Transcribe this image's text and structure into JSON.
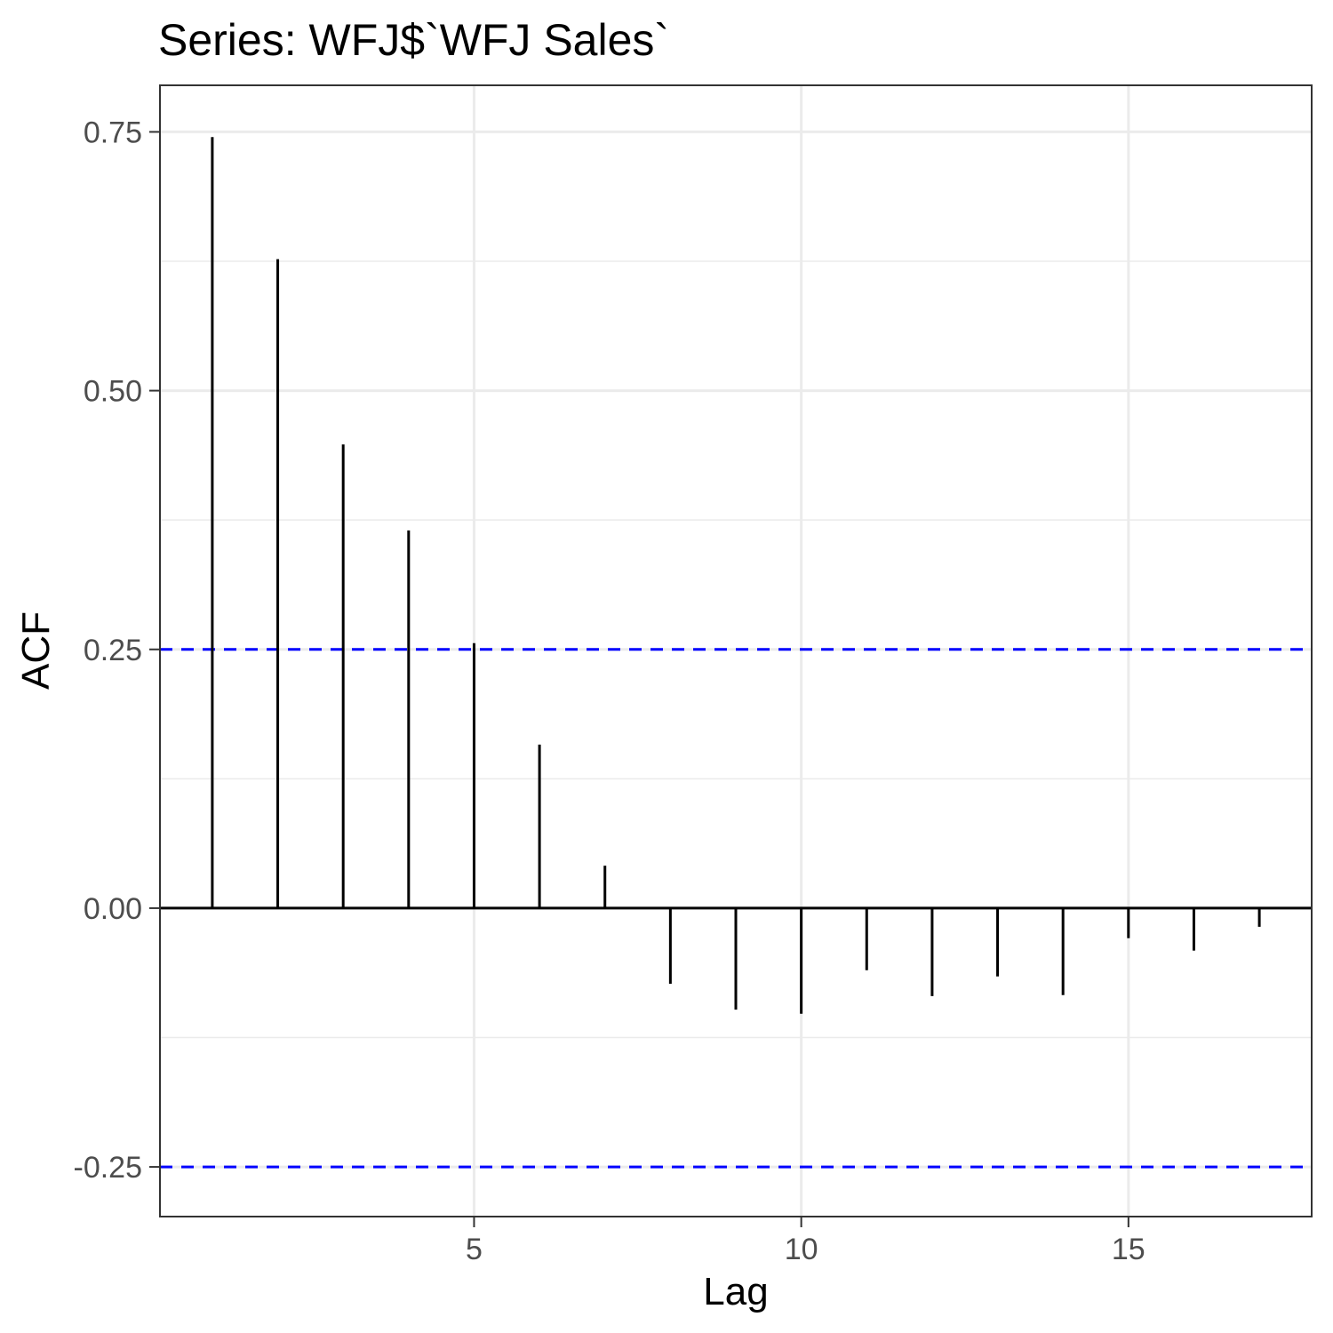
{
  "chart_data": {
    "type": "bar",
    "title": "Series: WFJ$`WFJ Sales`",
    "xlabel": "Lag",
    "ylabel": "ACF",
    "x": [
      1,
      2,
      3,
      4,
      5,
      6,
      7,
      8,
      9,
      10,
      11,
      12,
      13,
      14,
      15,
      16,
      17
    ],
    "values": [
      0.745,
      0.627,
      0.448,
      0.365,
      0.256,
      0.158,
      0.041,
      -0.073,
      -0.098,
      -0.102,
      -0.06,
      -0.085,
      -0.066,
      -0.084,
      -0.029,
      -0.041,
      -0.018
    ],
    "xlim": [
      0.2,
      17.8
    ],
    "ylim": [
      -0.298,
      0.795
    ],
    "x_ticks": [
      5,
      10,
      15
    ],
    "x_tick_labels": [
      "5",
      "10",
      "15"
    ],
    "y_ticks": [
      -0.25,
      0,
      0.25,
      0.5,
      0.75
    ],
    "y_tick_labels": [
      "-0.25",
      "0.00",
      "0.25",
      "0.50",
      "0.75"
    ],
    "confidence_bounds": [
      0.25,
      -0.25
    ],
    "colors": {
      "bars": "#000000",
      "confidence_line": "#0000ff",
      "grid": "#ebebeb",
      "panel_border": "#333333",
      "tick_label": "#4d4d4d"
    },
    "grid": true,
    "legend": "none"
  }
}
